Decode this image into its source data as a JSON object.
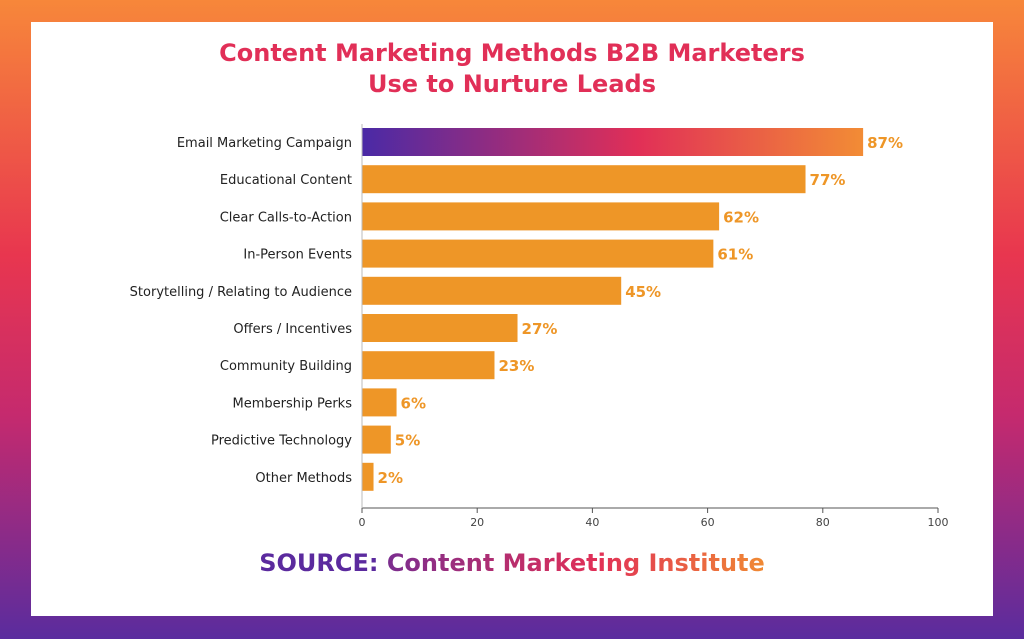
{
  "chart_data": {
    "type": "bar",
    "orientation": "horizontal",
    "title": "Content Marketing Methods B2B Marketers Use to Nurture Leads",
    "title_lines": [
      "Content Marketing Methods B2B Marketers",
      "Use to Nurture Leads"
    ],
    "categories": [
      "Email Marketing Campaign",
      "Educational Content",
      "Clear Calls-to-Action",
      "In-Person Events",
      "Storytelling / Relating to Audience",
      "Offers / Incentives",
      "Community Building",
      "Membership Perks",
      "Predictive Technology",
      "Other Methods"
    ],
    "values": [
      87,
      77,
      62,
      61,
      45,
      27,
      23,
      6,
      5,
      2
    ],
    "value_labels": [
      "87%",
      "77%",
      "62%",
      "61%",
      "45%",
      "27%",
      "23%",
      "6%",
      "5%",
      "2%"
    ],
    "xlim": [
      0,
      100
    ],
    "xticks": [
      0,
      20,
      40,
      60,
      80,
      100
    ],
    "grid": false,
    "xlabel": "",
    "ylabel": ""
  },
  "source": {
    "prefix": "SOURCE:",
    "name": "Content Marketing Institute"
  },
  "colors": {
    "bar": "#ee9627",
    "highlight_gradient": [
      "#4a2aa6",
      "#e12f57",
      "#f28c35"
    ],
    "title": "#e12f57",
    "value_label": "#ee9627"
  }
}
